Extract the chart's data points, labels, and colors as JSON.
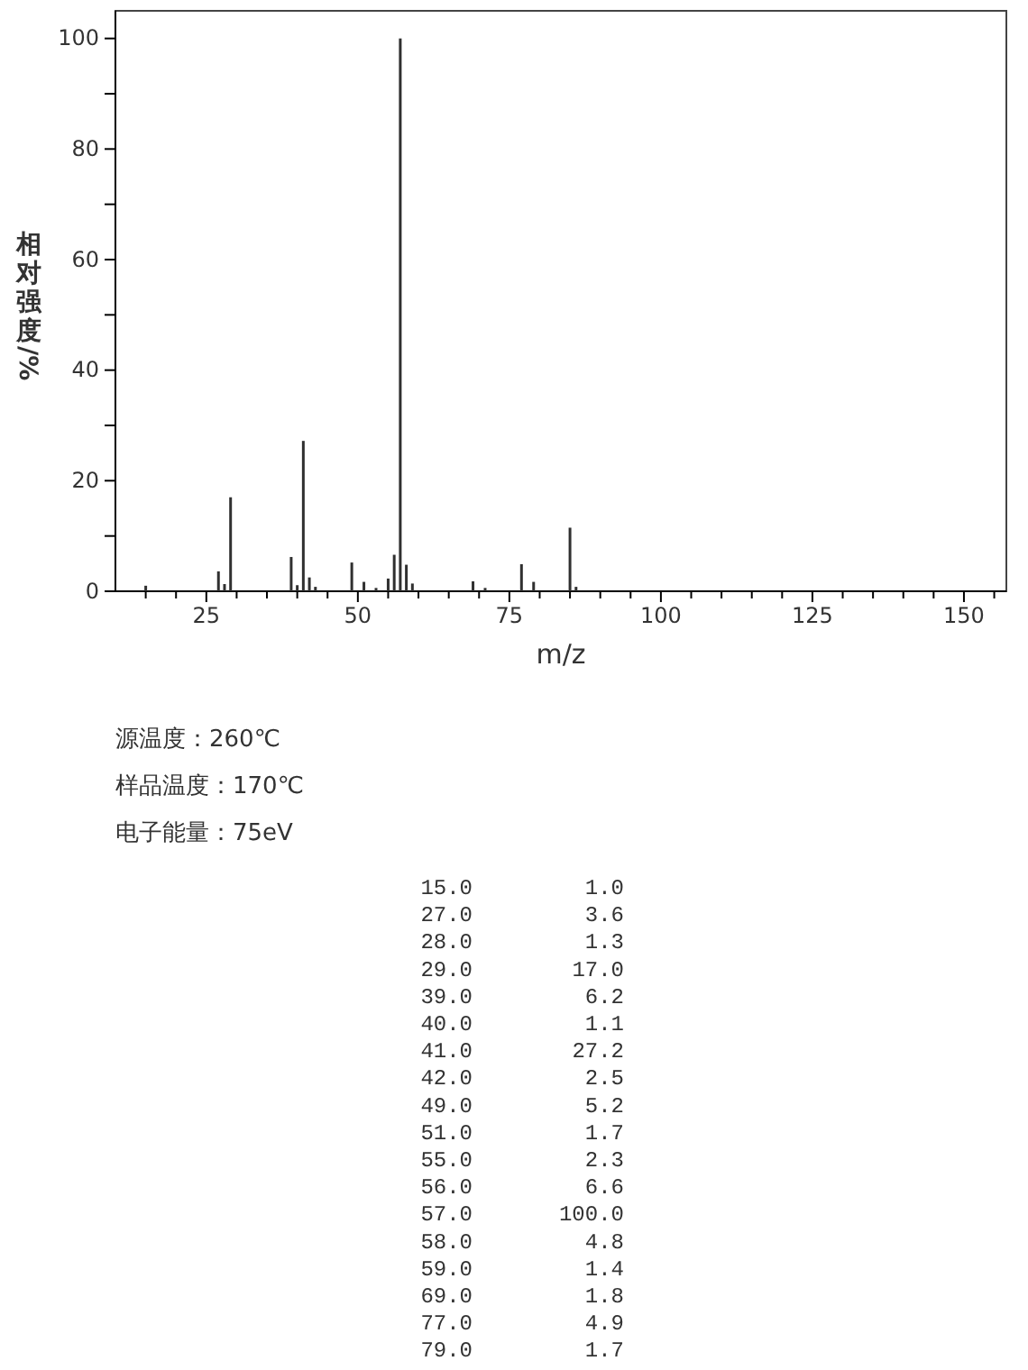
{
  "chart_data": [
    {
      "type": "bar",
      "xlabel": "m/z",
      "ylabel": "相对强度/%",
      "x": [
        15,
        27,
        28,
        29,
        39,
        40,
        41,
        42,
        43,
        49,
        51,
        53,
        55,
        56,
        57,
        58,
        59,
        69,
        71,
        77,
        79,
        85,
        86
      ],
      "values": [
        1.0,
        3.6,
        1.3,
        17.0,
        6.2,
        1.1,
        27.2,
        2.5,
        0.8,
        5.2,
        1.7,
        0.6,
        2.3,
        6.6,
        100.0,
        4.8,
        1.4,
        1.8,
        0.6,
        4.9,
        1.7,
        11.5,
        0.8
      ],
      "color": "#303030",
      "xlim": [
        10,
        157
      ],
      "xticks": [
        {
          "value": 15,
          "label": null
        },
        {
          "value": 20,
          "label": null
        },
        25,
        {
          "value": 30,
          "label": null
        },
        {
          "value": 35,
          "label": null
        },
        {
          "value": 40,
          "label": null
        },
        {
          "value": 45,
          "label": null
        },
        50,
        {
          "value": 55,
          "label": null
        },
        {
          "value": 60,
          "label": null
        },
        {
          "value": 65,
          "label": null
        },
        {
          "value": 70,
          "label": null
        },
        75,
        {
          "value": 80,
          "label": null
        },
        {
          "value": 85,
          "label": null
        },
        {
          "value": 90,
          "label": null
        },
        {
          "value": 95,
          "label": null
        },
        100,
        {
          "value": 105,
          "label": null
        },
        {
          "value": 110,
          "label": null
        },
        {
          "value": 115,
          "label": null
        },
        {
          "value": 120,
          "label": null
        },
        125,
        {
          "value": 130,
          "label": null
        },
        {
          "value": 135,
          "label": null
        },
        {
          "value": 140,
          "label": null
        },
        {
          "value": 145,
          "label": null
        },
        150,
        {
          "value": 155,
          "label": null
        }
      ],
      "ylim": [
        0,
        105
      ],
      "yticks": [
        0,
        {
          "value": 10,
          "label": null
        },
        20,
        {
          "value": 30,
          "label": null
        },
        40,
        {
          "value": 50,
          "label": null
        },
        60,
        {
          "value": 70,
          "label": null
        },
        80,
        {
          "value": 90,
          "label": null
        },
        100
      ],
      "annotations": [
        "源温度：260℃",
        "样品温度：170℃",
        "电子能量：75eV"
      ],
      "grid": false
    },
    {
      "type": "other",
      "annotations": [
        "15.0",
        "1.0",
        "27.0",
        "3.6",
        "28.0",
        "1.3",
        "29.0",
        "17.0",
        "39.0",
        "6.2",
        "40.0",
        "1.1",
        "41.0",
        "27.2",
        "42.0",
        "2.5",
        "49.0",
        "5.2",
        "51.0",
        "1.7",
        "55.0",
        "2.3",
        "56.0",
        "6.6",
        "57.0",
        "100.0",
        "58.0",
        "4.8",
        "59.0",
        "1.4",
        "69.0",
        "1.8",
        "77.0",
        "4.9",
        "79.0",
        "1.7"
      ]
    }
  ]
}
